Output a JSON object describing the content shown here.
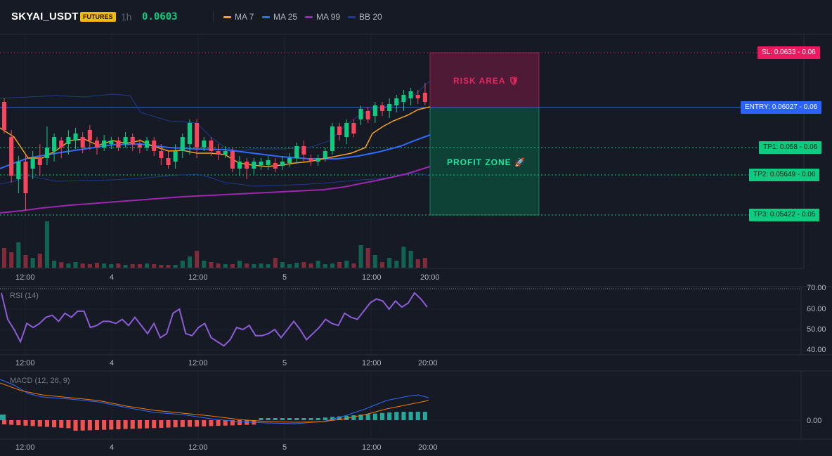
{
  "header": {
    "symbol": "SKYAI_USDT",
    "badge": "FUTURES",
    "timeframe": "1h",
    "last_price": "0.0603",
    "legend": [
      {
        "label": "MA 7",
        "color": "#f7a521"
      },
      {
        "label": "MA 25",
        "color": "#2f6bff"
      },
      {
        "label": "MA 99",
        "color": "#9c27b0"
      },
      {
        "label": "BB 20",
        "color": "#1e3a8a"
      }
    ]
  },
  "colors": {
    "up": "#0ecb81",
    "down": "#f6465d",
    "entry": "#2962ff",
    "sl": "#f0185f",
    "tp": "#0ecb81"
  },
  "levels": {
    "sl": {
      "label": "SL: 0.0633",
      "axis": "0.06",
      "value": 0.0633
    },
    "entry": {
      "label": "ENTRY: 0.06027",
      "axis": "0.06",
      "value": 0.06027
    },
    "tp1": {
      "label": "TP1: 0.058",
      "axis": "0.06",
      "value": 0.058
    },
    "tp2": {
      "label": "TP2: 0.05649",
      "axis": "0.06",
      "value": 0.05649
    },
    "tp3": {
      "label": "TP3: 0.05422",
      "axis": "0.05",
      "value": 0.05422
    }
  },
  "zones": {
    "risk": "RISK AREA 🛡",
    "profit": "PROFIT ZONE 🚀"
  },
  "x_axis_labels": [
    "12:00",
    "4",
    "12:00",
    "5",
    "12:00",
    "20:00"
  ],
  "rsi": {
    "title": "RSI (14)",
    "axis": [
      "70.00",
      "60.00",
      "50.00",
      "40.00"
    ]
  },
  "macd": {
    "title": "MACD (12, 26, 9)",
    "axis": [
      "0.00"
    ]
  },
  "chart_data": {
    "type": "line",
    "xlabel": "",
    "ylabel": "",
    "rsi_values": [
      68,
      55,
      50,
      44,
      53,
      51,
      53,
      56,
      57,
      54,
      58,
      56,
      59,
      59,
      51,
      52,
      54,
      54,
      53,
      55,
      52,
      56,
      52,
      48,
      53,
      46,
      48,
      58,
      60,
      48,
      47,
      51,
      53,
      46,
      44,
      42,
      45,
      51,
      50,
      52,
      47,
      47,
      48,
      50,
      46,
      50,
      54,
      50,
      45,
      48,
      51,
      55,
      53,
      52,
      58,
      56,
      55,
      59,
      63,
      65,
      64,
      60,
      64,
      61,
      63,
      68,
      65,
      61
    ]
  }
}
